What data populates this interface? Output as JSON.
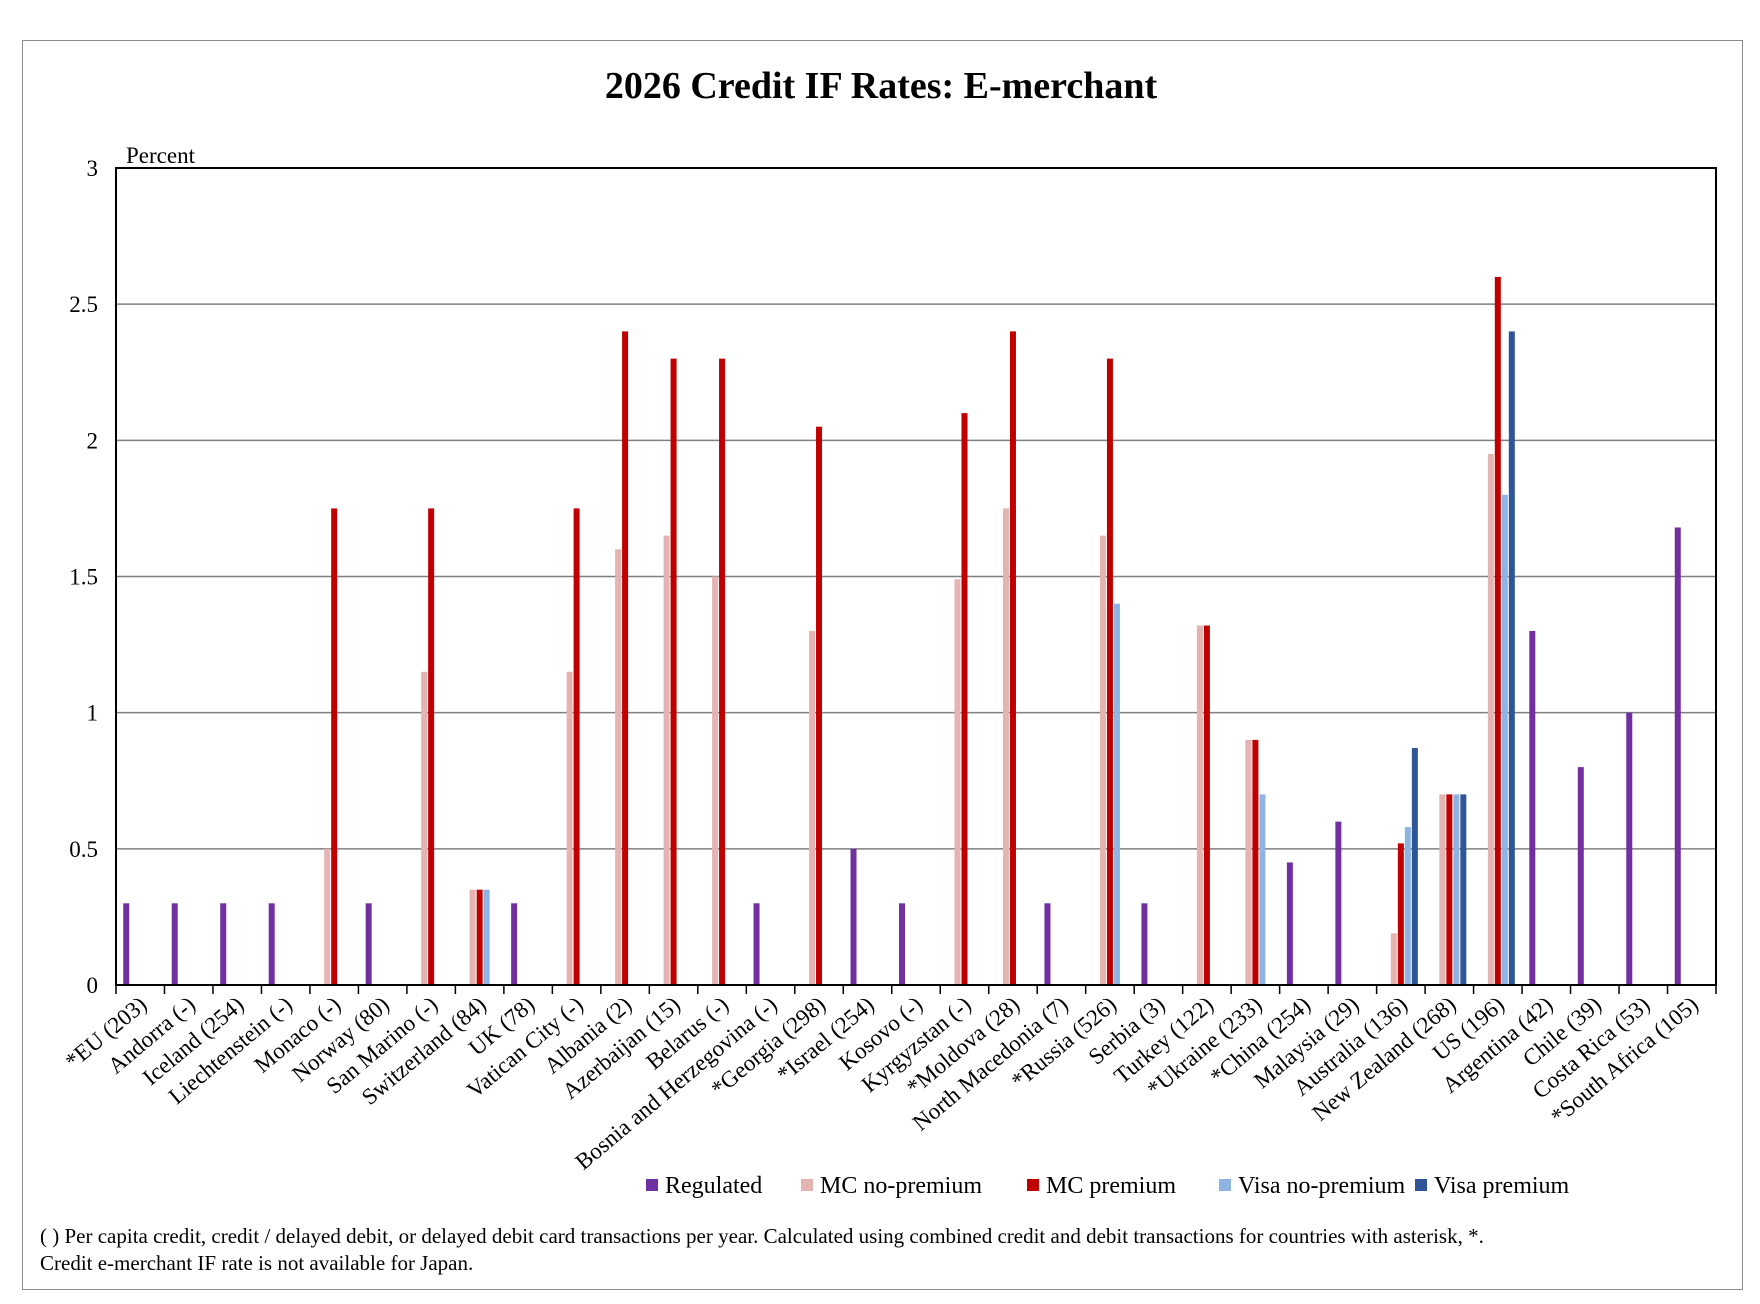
{
  "chart_data": {
    "type": "bar",
    "title": "2026 Credit IF Rates: E-merchant",
    "ylabel": "Percent",
    "xlabel": "",
    "ylim": [
      0,
      3
    ],
    "yticks": [
      "0",
      "0.5",
      "1",
      "1.5",
      "2",
      "2.5",
      "3"
    ],
    "grid": true,
    "legend_position": "bottom",
    "categories": [
      "*EU (203)",
      "Andorra (-)",
      "Iceland (254)",
      "Liechtenstein (-)",
      "Monaco (-)",
      "Norway (80)",
      "San Marino (-)",
      "Switzerland (84)",
      "UK (78)",
      "Vatican City (-)",
      "Albania (2)",
      "Azerbaijan (15)",
      "Belarus (-)",
      "Bosnia and Herzegovina (-)",
      "*Georgia (298)",
      "*Israel (254)",
      "Kosovo (-)",
      "Kyrgyzstan (-)",
      "*Moldova (28)",
      "North Macedonia (7)",
      "*Russia (526)",
      "Serbia (3)",
      "Turkey (122)",
      "*Ukraine (233)",
      "*China (254)",
      "Malaysia (29)",
      "Australia (136)",
      "New Zealand (268)",
      "US (196)",
      "Argentina (42)",
      "Chile (39)",
      "Costa Rica (53)",
      "*South Africa (105)"
    ],
    "series": [
      {
        "name": "Regulated",
        "color": "#7030a0",
        "values": [
          0.3,
          0.3,
          0.3,
          0.3,
          null,
          0.3,
          null,
          null,
          0.3,
          null,
          null,
          null,
          null,
          0.3,
          null,
          0.5,
          0.3,
          null,
          null,
          0.3,
          null,
          0.3,
          null,
          null,
          0.45,
          0.6,
          null,
          null,
          null,
          1.3,
          0.8,
          1.0,
          1.68
        ]
      },
      {
        "name": "MC no-premium",
        "color": "#e6b3b3",
        "values": [
          null,
          null,
          null,
          null,
          0.5,
          null,
          1.15,
          0.35,
          null,
          1.15,
          1.6,
          1.65,
          1.5,
          null,
          1.3,
          null,
          null,
          1.49,
          1.75,
          null,
          1.65,
          null,
          1.32,
          0.9,
          null,
          null,
          0.19,
          0.7,
          1.95,
          null,
          null,
          null,
          null
        ]
      },
      {
        "name": "MC premium",
        "color": "#c00000",
        "values": [
          null,
          null,
          null,
          null,
          1.75,
          null,
          1.75,
          0.35,
          null,
          1.75,
          2.4,
          2.3,
          2.3,
          null,
          2.05,
          null,
          null,
          2.1,
          2.4,
          null,
          2.3,
          null,
          1.32,
          0.9,
          null,
          null,
          0.52,
          0.7,
          2.6,
          null,
          null,
          null,
          null
        ]
      },
      {
        "name": "Visa no-premium",
        "color": "#8eb4e3",
        "values": [
          null,
          null,
          null,
          null,
          null,
          null,
          null,
          0.35,
          null,
          null,
          null,
          null,
          null,
          null,
          null,
          null,
          null,
          null,
          null,
          null,
          1.4,
          null,
          null,
          0.7,
          null,
          null,
          0.58,
          0.7,
          1.8,
          null,
          null,
          null,
          null
        ]
      },
      {
        "name": "Visa premium",
        "color": "#2e5597",
        "values": [
          null,
          null,
          null,
          null,
          null,
          null,
          null,
          null,
          null,
          null,
          null,
          null,
          null,
          null,
          null,
          null,
          null,
          null,
          null,
          null,
          null,
          null,
          null,
          null,
          null,
          null,
          0.87,
          0.7,
          2.4,
          null,
          null,
          null,
          null
        ]
      }
    ]
  },
  "footnote": {
    "line1": "( ) Per capita credit, credit / delayed debit, or delayed debit card transactions per year. Calculated using combined credit and debit transactions for countries with asterisk, *.",
    "line2": "Credit e-merchant IF rate is not available for Japan."
  }
}
